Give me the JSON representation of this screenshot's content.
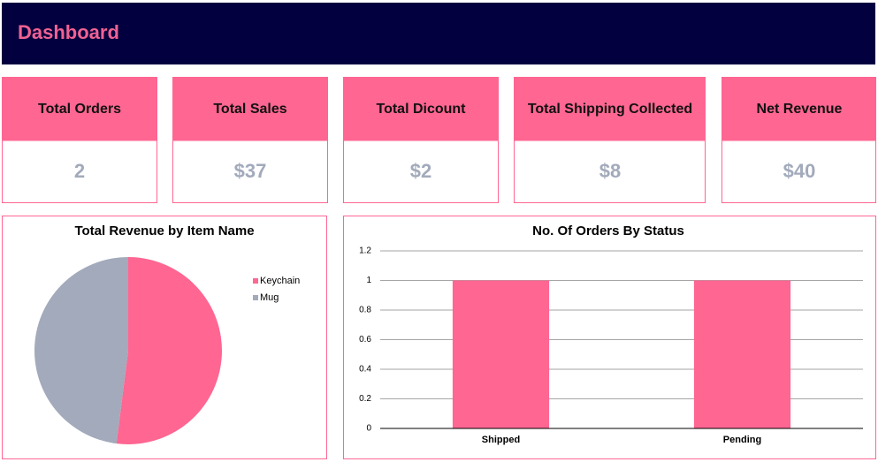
{
  "header": {
    "title": "Dashboard"
  },
  "kpis": [
    {
      "label": "Total Orders",
      "value": "2"
    },
    {
      "label": "Total Sales",
      "value": "$37"
    },
    {
      "label": "Total Dicount",
      "value": "$2"
    },
    {
      "label": "Total Shipping Collected",
      "value": "$8"
    },
    {
      "label": "Net Revenue",
      "value": "$40"
    }
  ],
  "chart_data": [
    {
      "type": "pie",
      "title": "Total Revenue by Item Name",
      "categories": [
        "Keychain",
        "Mug"
      ],
      "values": [
        52,
        48
      ],
      "colors": [
        "#ff6692",
        "#a2aabb"
      ],
      "legend": "right"
    },
    {
      "type": "bar",
      "title": "No. Of Orders By Status",
      "categories": [
        "Shipped",
        "Pending"
      ],
      "values": [
        1,
        1
      ],
      "color": "#ff6692",
      "ylim": [
        0,
        1.2
      ],
      "yticks": [
        0,
        0.2,
        0.4,
        0.6,
        0.8,
        1,
        1.2
      ],
      "grid": true
    }
  ]
}
